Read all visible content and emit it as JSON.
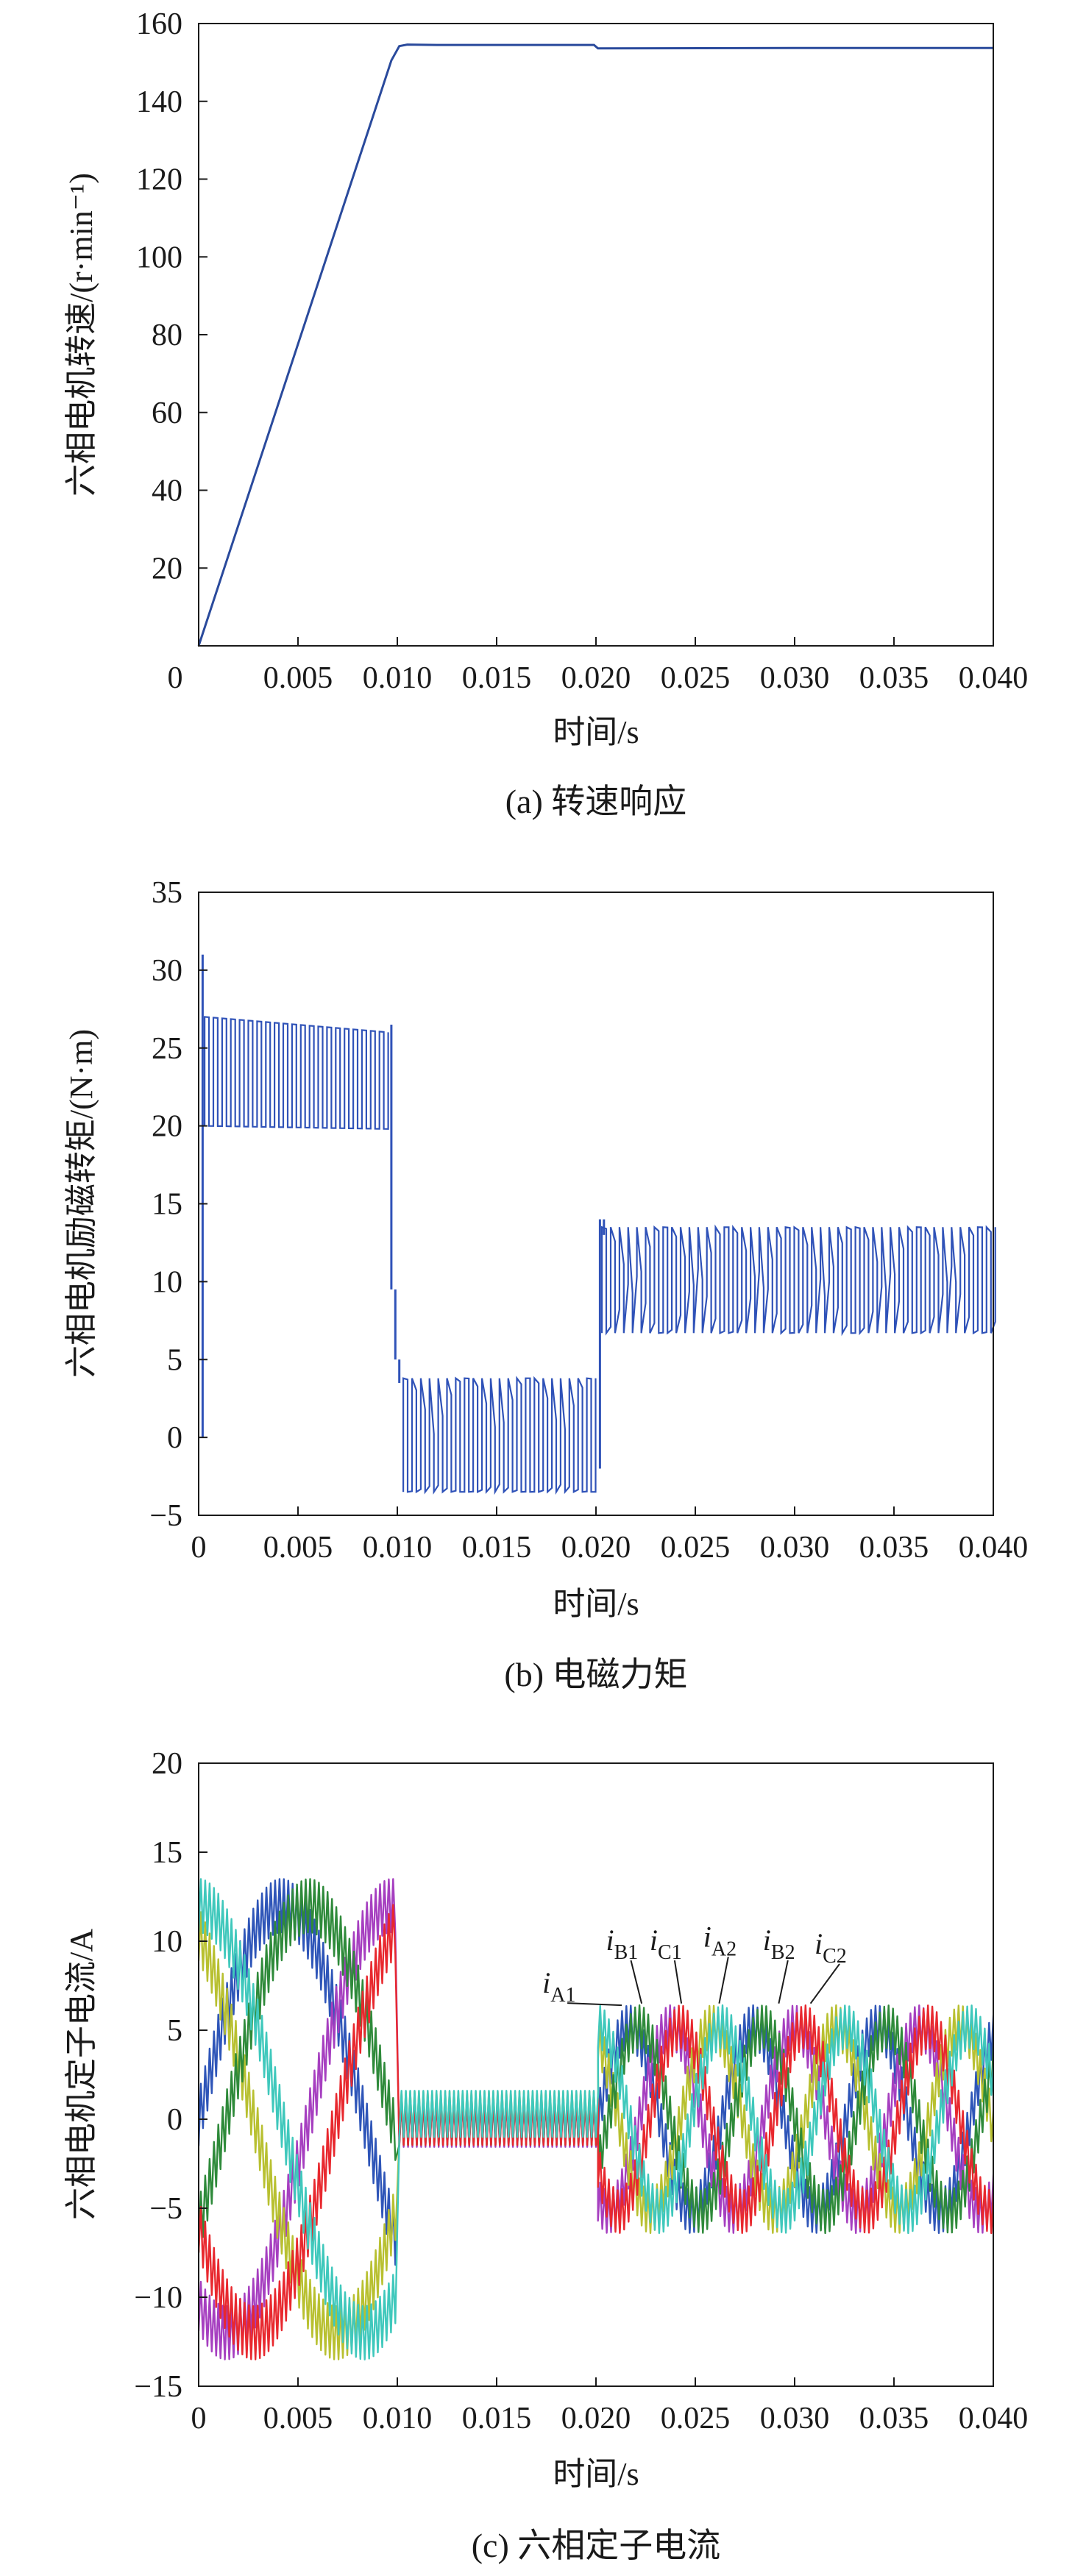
{
  "chart_data": [
    {
      "type": "line",
      "caption": "(a) 转速响应",
      "xlabel": "时间/s",
      "ylabel": "六相电机转速/(r·min⁻¹)",
      "xlim": [
        0,
        0.04
      ],
      "ylim": [
        0,
        160
      ],
      "x_ticks": [
        "0",
        "0.005",
        "0.010",
        "0.015",
        "0.020",
        "0.025",
        "0.030",
        "0.035",
        "0.040"
      ],
      "y_ticks": [
        "20",
        "40",
        "60",
        "80",
        "100",
        "120",
        "140",
        "160"
      ],
      "grid": false,
      "series": [
        {
          "color": "#2a4a9c",
          "x": [
            0,
            0.0097,
            0.0101,
            0.0105,
            0.012,
            0.0199,
            0.0201,
            0.03,
            0.04
          ],
          "y": [
            0,
            150.5,
            154.2,
            154.6,
            154.5,
            154.5,
            153.6,
            153.7,
            153.7
          ]
        }
      ]
    },
    {
      "type": "line",
      "caption": "(b) 电磁力矩",
      "xlabel": "时间/s",
      "ylabel": "六相电机励磁转矩/(N·m)",
      "xlim": [
        0,
        0.04
      ],
      "ylim": [
        -5,
        35
      ],
      "x_ticks": [
        "0",
        "0.005",
        "0.010",
        "0.015",
        "0.020",
        "0.025",
        "0.030",
        "0.035",
        "0.040"
      ],
      "y_ticks": [
        "−5",
        "0",
        "5",
        "10",
        "15",
        "20",
        "25",
        "30",
        "35"
      ],
      "grid": false,
      "series": [
        {
          "color": "#2f52b8",
          "segments": [
            {
              "from": 0.0003,
              "to": 0.0096,
              "upper": [
                27.0,
                26.0
              ],
              "lower": [
                20.0,
                19.8
              ],
              "period": 0.00022
            },
            {
              "from": 0.0103,
              "to": 0.02,
              "upper": [
                3.8,
                3.8
              ],
              "lower": [
                -3.5,
                -3.5
              ],
              "period": 0.00022,
              "envelope": 0.0032,
              "inner_upper": 0.0,
              "inner_lower": -3.0
            },
            {
              "from": 0.0203,
              "to": 0.04,
              "upper": [
                13.5,
                13.5
              ],
              "lower": [
                6.7,
                6.7
              ],
              "period": 0.00022,
              "envelope": 0.0032,
              "inner_upper": 9.0,
              "inner_lower": 11.0
            }
          ],
          "spikes": [
            {
              "x": 0.0002,
              "y": [
                0,
                31
              ]
            },
            {
              "x": 0.0097,
              "y": [
                26.5,
                9.5
              ]
            },
            {
              "x": 0.0099,
              "y": [
                9.5,
                5.0
              ]
            },
            {
              "x": 0.0101,
              "y": [
                5.0,
                3.5
              ]
            },
            {
              "x": 0.0202,
              "y": [
                -2.0,
                14.0
              ]
            },
            {
              "x": 0.0204,
              "y": [
                14.0,
                13.0
              ]
            }
          ]
        }
      ]
    },
    {
      "type": "line",
      "caption": "(c) 六相定子电流",
      "xlabel": "时间/s",
      "ylabel": "六相电机定子电流/A",
      "xlim": [
        0,
        0.04
      ],
      "ylim": [
        -15,
        20
      ],
      "x_ticks": [
        "0",
        "0.005",
        "0.010",
        "0.015",
        "0.020",
        "0.025",
        "0.030",
        "0.035",
        "0.040"
      ],
      "y_ticks": [
        "−15",
        "−10",
        "−5",
        "0",
        "5",
        "10",
        "15",
        "20"
      ],
      "grid": false,
      "annotations": [
        {
          "text": "i",
          "sub": "A1",
          "x": 0.0173,
          "y": 7.1,
          "to_x": 0.0213,
          "to_y": 6.4
        },
        {
          "text": "i",
          "sub": "B1",
          "x": 0.0205,
          "y": 9.5,
          "to_x": 0.0223,
          "to_y": 6.5
        },
        {
          "text": "i",
          "sub": "C1",
          "x": 0.0227,
          "y": 9.5,
          "to_x": 0.0243,
          "to_y": 6.5
        },
        {
          "text": "i",
          "sub": "A2",
          "x": 0.0254,
          "y": 9.7,
          "to_x": 0.0262,
          "to_y": 6.5
        },
        {
          "text": "i",
          "sub": "B2",
          "x": 0.0284,
          "y": 9.5,
          "to_x": 0.0292,
          "to_y": 6.5
        },
        {
          "text": "i",
          "sub": "C2",
          "x": 0.031,
          "y": 9.3,
          "to_x": 0.0308,
          "to_y": 6.5
        }
      ],
      "series": [
        {
          "name": "iA1",
          "color": "#2e55b8",
          "phase_deg": 0
        },
        {
          "name": "iB1",
          "color": "#a63fc0",
          "phase_deg": -120
        },
        {
          "name": "iC1",
          "color": "#b8c030",
          "phase_deg": 120
        },
        {
          "name": "iA2",
          "color": "#2e8a3a",
          "phase_deg": -30
        },
        {
          "name": "iB2",
          "color": "#e8282e",
          "phase_deg": -150
        },
        {
          "name": "iC2",
          "color": "#3fc8bc",
          "phase_deg": 90
        }
      ],
      "regimes": [
        {
          "from": 0.0,
          "to": 0.0099,
          "amplitude": 12.0,
          "ripple": 1.5,
          "frequency_hz": 60
        },
        {
          "from": 0.0101,
          "to": 0.0201,
          "amplitude": 0.3,
          "ripple": 1.3,
          "frequency_hz": 0
        },
        {
          "from": 0.0201,
          "to": 0.04,
          "amplitude": 5.2,
          "ripple": 1.2,
          "frequency_hz": 160
        }
      ]
    }
  ]
}
